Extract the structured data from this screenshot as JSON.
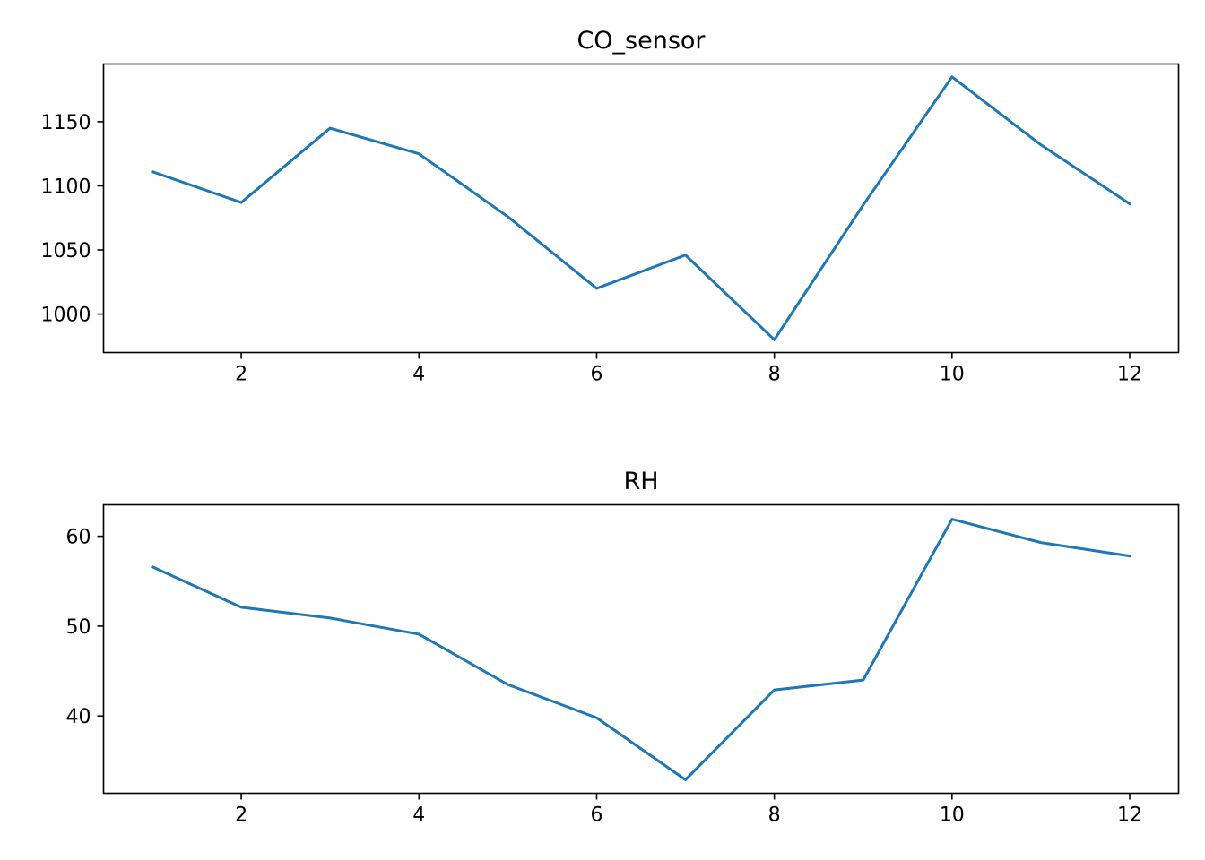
{
  "chart_data": [
    {
      "type": "line",
      "title": "CO_sensor",
      "xlabel": "",
      "ylabel": "",
      "x": [
        1,
        2,
        3,
        4,
        5,
        6,
        7,
        8,
        9,
        10,
        11,
        12
      ],
      "series": [
        {
          "values": [
            1111,
            1087,
            1145,
            1125,
            1076,
            1020,
            1046,
            980,
            1085,
            1185,
            1132,
            1086
          ],
          "color": "#1f77b4"
        }
      ],
      "xlim": [
        0.45,
        12.55
      ],
      "ylim": [
        970,
        1195
      ],
      "xticks": [
        2,
        4,
        6,
        8,
        10,
        12
      ],
      "yticks": [
        1000,
        1050,
        1100,
        1150
      ],
      "grid": false,
      "legend": "none"
    },
    {
      "type": "line",
      "title": "RH",
      "xlabel": "",
      "ylabel": "",
      "x": [
        1,
        2,
        3,
        4,
        5,
        6,
        7,
        8,
        9,
        10,
        11,
        12
      ],
      "series": [
        {
          "values": [
            56.6,
            52.1,
            50.9,
            49.1,
            43.5,
            39.8,
            32.9,
            42.9,
            44.0,
            61.9,
            59.3,
            57.8
          ],
          "color": "#1f77b4"
        }
      ],
      "xlim": [
        0.45,
        12.55
      ],
      "ylim": [
        31.4,
        63.5
      ],
      "xticks": [
        2,
        4,
        6,
        8,
        10,
        12
      ],
      "yticks": [
        40,
        50,
        60
      ],
      "grid": false,
      "legend": "none"
    }
  ]
}
